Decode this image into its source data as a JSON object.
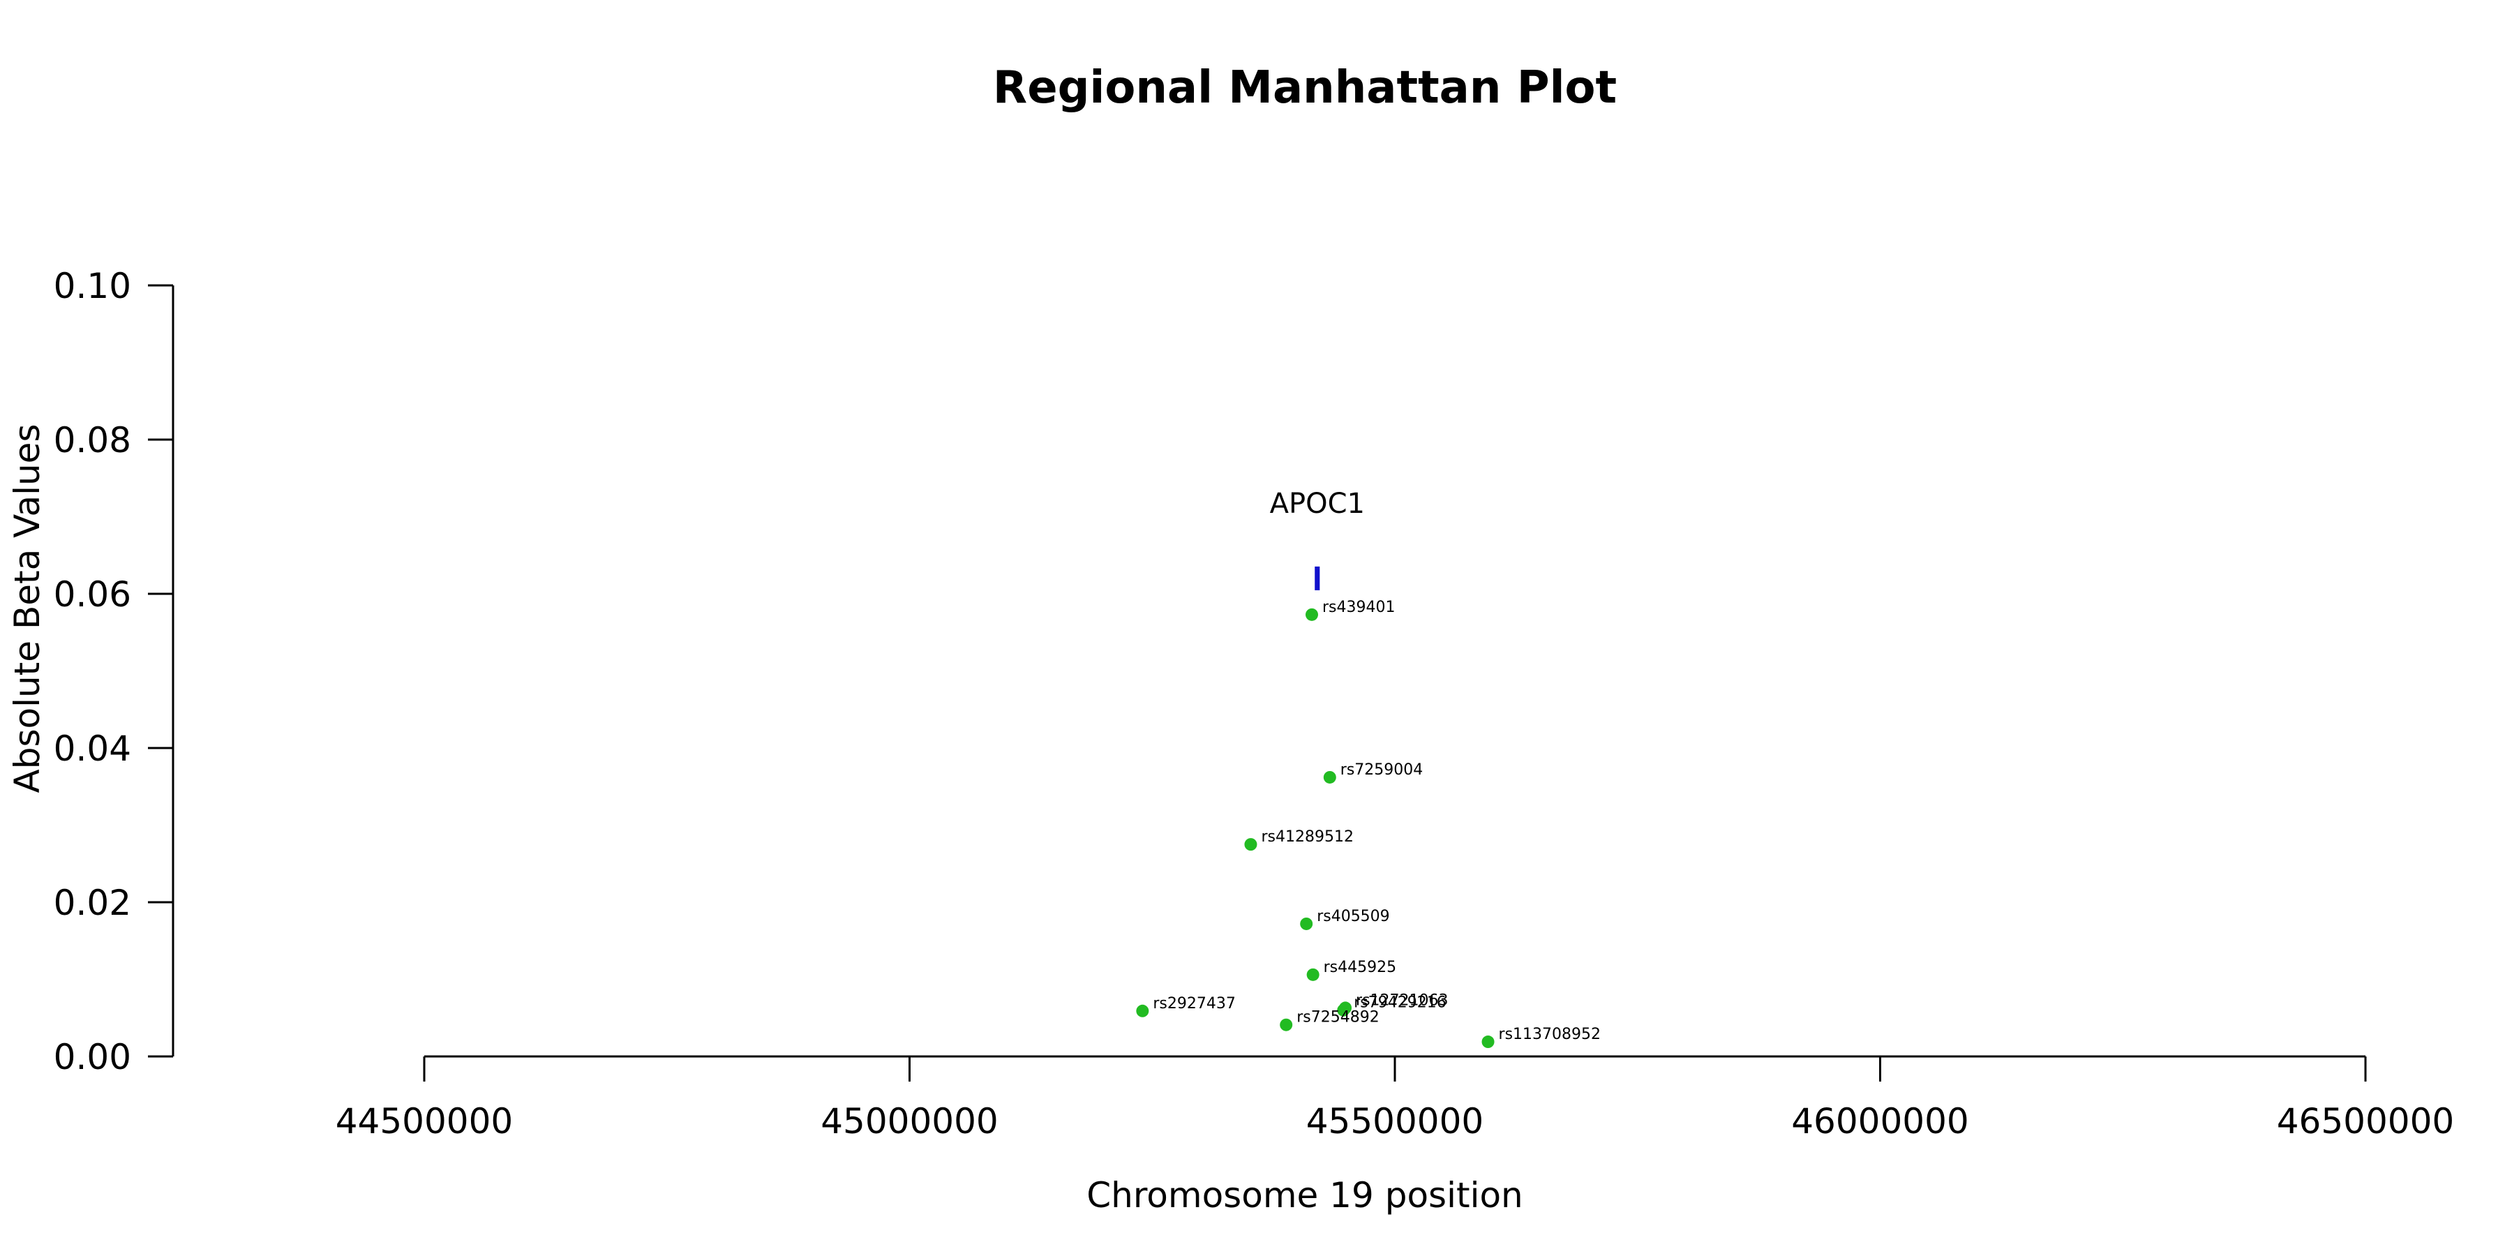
{
  "chart_data": {
    "type": "scatter",
    "title": "Regional Manhattan Plot",
    "xlabel": "Chromosome 19 position",
    "ylabel": "Absolute Beta Values",
    "xlim": [
      44500000,
      46500000
    ],
    "ylim": [
      0,
      0.1
    ],
    "x_ticks": [
      "44500000",
      "45000000",
      "45500000",
      "46000000",
      "46500000"
    ],
    "y_ticks": [
      "0.00",
      "0.02",
      "0.04",
      "0.06",
      "0.08",
      "0.10"
    ],
    "point_color": "#22bb22",
    "gene_color": "#1111cc",
    "gene": {
      "name": "APOC1",
      "start": 45417500,
      "end": 45422600,
      "y": 0.062
    },
    "points": [
      {
        "label": "rs439401",
        "x": 45414451,
        "y": 0.0573
      },
      {
        "label": "rs7259004",
        "x": 45433000,
        "y": 0.0362
      },
      {
        "label": "rs41289512",
        "x": 45351516,
        "y": 0.0275
      },
      {
        "label": "rs405509",
        "x": 45408836,
        "y": 0.0172
      },
      {
        "label": "rs445925",
        "x": 45415640,
        "y": 0.0106
      },
      {
        "label": "rs12721063",
        "x": 45449000,
        "y": 0.0063
      },
      {
        "label": "rs79429216",
        "x": 45447000,
        "y": 0.006
      },
      {
        "label": "rs2927437",
        "x": 45240000,
        "y": 0.0059
      },
      {
        "label": "rs7254892",
        "x": 45388000,
        "y": 0.0041
      },
      {
        "label": "rs113708952",
        "x": 45596000,
        "y": 0.0019
      }
    ]
  }
}
